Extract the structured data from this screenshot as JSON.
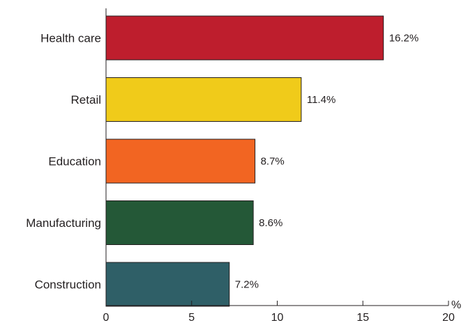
{
  "chart_data": {
    "type": "bar",
    "orientation": "horizontal",
    "categories": [
      "Health care",
      "Retail",
      "Education",
      "Manufacturing",
      "Construction"
    ],
    "values": [
      16.2,
      11.4,
      8.7,
      8.6,
      7.2
    ],
    "value_labels": [
      "16.2%",
      "11.4%",
      "8.7%",
      "8.6%",
      "7.2%"
    ],
    "colors": [
      "#be1e2d",
      "#f0cb1a",
      "#f26522",
      "#245837",
      "#2f5f67"
    ],
    "x_unit": "%",
    "xlim": [
      0,
      20
    ],
    "x_ticks": [
      0,
      5,
      10,
      15,
      20
    ],
    "x_tick_labels": [
      "0",
      "5",
      "10",
      "15",
      "20"
    ],
    "grid": false,
    "legend": "none",
    "title": "",
    "xlabel": "",
    "ylabel": ""
  }
}
